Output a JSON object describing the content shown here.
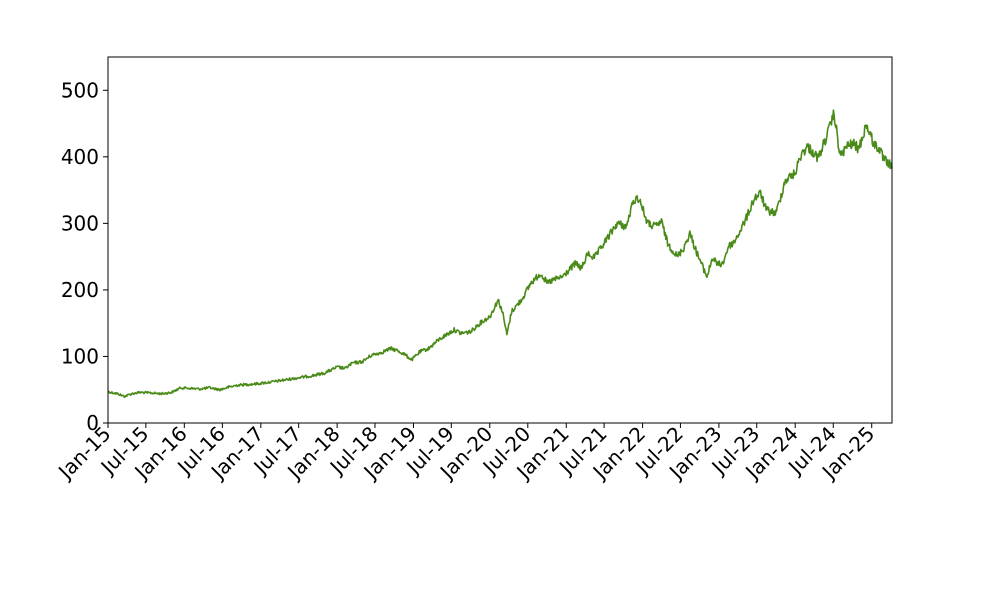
{
  "chart_data": {
    "type": "line",
    "title": "",
    "xlabel": "",
    "ylabel": "",
    "xlim": [
      "2015-01-01",
      "2025-04-08"
    ],
    "ylim": [
      0,
      550
    ],
    "grid": false,
    "x_ticks": [
      {
        "date": "2015-01-01",
        "label": "Jan-15"
      },
      {
        "date": "2015-07-01",
        "label": "Jul-15"
      },
      {
        "date": "2016-01-01",
        "label": "Jan-16"
      },
      {
        "date": "2016-07-01",
        "label": "Jul-16"
      },
      {
        "date": "2017-01-01",
        "label": "Jan-17"
      },
      {
        "date": "2017-07-01",
        "label": "Jul-17"
      },
      {
        "date": "2018-01-01",
        "label": "Jan-18"
      },
      {
        "date": "2018-07-01",
        "label": "Jul-18"
      },
      {
        "date": "2019-01-01",
        "label": "Jan-19"
      },
      {
        "date": "2019-07-01",
        "label": "Jul-19"
      },
      {
        "date": "2020-01-01",
        "label": "Jan-20"
      },
      {
        "date": "2020-07-01",
        "label": "Jul-20"
      },
      {
        "date": "2021-01-01",
        "label": "Jan-21"
      },
      {
        "date": "2021-07-01",
        "label": "Jul-21"
      },
      {
        "date": "2022-01-01",
        "label": "Jan-22"
      },
      {
        "date": "2022-07-01",
        "label": "Jul-22"
      },
      {
        "date": "2023-01-01",
        "label": "Jan-23"
      },
      {
        "date": "2023-07-01",
        "label": "Jul-23"
      },
      {
        "date": "2024-01-01",
        "label": "Jan-24"
      },
      {
        "date": "2024-07-01",
        "label": "Jul-24"
      },
      {
        "date": "2025-01-01",
        "label": "Jan-25"
      }
    ],
    "y_ticks": [
      {
        "value": 0,
        "label": "0"
      },
      {
        "value": 100,
        "label": "100"
      },
      {
        "value": 200,
        "label": "200"
      },
      {
        "value": 300,
        "label": "300"
      },
      {
        "value": 400,
        "label": "400"
      },
      {
        "value": 500,
        "label": "500"
      }
    ],
    "series": [
      {
        "color": "#4a8a18",
        "points": [
          [
            "2015-01-02",
            47
          ],
          [
            "2015-02-15",
            44
          ],
          [
            "2015-03-20",
            40
          ],
          [
            "2015-04-25",
            44
          ],
          [
            "2015-06-01",
            46
          ],
          [
            "2015-08-01",
            45
          ],
          [
            "2015-09-15",
            44
          ],
          [
            "2015-11-01",
            46
          ],
          [
            "2015-12-15",
            53
          ],
          [
            "2016-02-01",
            52
          ],
          [
            "2016-03-15",
            51
          ],
          [
            "2016-05-01",
            53
          ],
          [
            "2016-06-20",
            50
          ],
          [
            "2016-08-01",
            54
          ],
          [
            "2016-09-15",
            57
          ],
          [
            "2016-11-01",
            58
          ],
          [
            "2016-12-15",
            59
          ],
          [
            "2017-03-01",
            62
          ],
          [
            "2017-05-01",
            65
          ],
          [
            "2017-07-01",
            68
          ],
          [
            "2017-09-01",
            71
          ],
          [
            "2017-11-01",
            75
          ],
          [
            "2018-01-01",
            84
          ],
          [
            "2018-02-08",
            82
          ],
          [
            "2018-03-15",
            90
          ],
          [
            "2018-05-01",
            92
          ],
          [
            "2018-06-15",
            102
          ],
          [
            "2018-08-01",
            106
          ],
          [
            "2018-09-15",
            112
          ],
          [
            "2018-10-15",
            109
          ],
          [
            "2018-11-15",
            104
          ],
          [
            "2018-12-24",
            95
          ],
          [
            "2019-02-01",
            107
          ],
          [
            "2019-03-15",
            112
          ],
          [
            "2019-05-01",
            125
          ],
          [
            "2019-06-10",
            133
          ],
          [
            "2019-07-15",
            140
          ],
          [
            "2019-08-15",
            135
          ],
          [
            "2019-10-01",
            137
          ],
          [
            "2019-11-15",
            150
          ],
          [
            "2020-01-02",
            160
          ],
          [
            "2020-02-10",
            185
          ],
          [
            "2020-03-01",
            168
          ],
          [
            "2020-03-23",
            133
          ],
          [
            "2020-04-15",
            168
          ],
          [
            "2020-06-01",
            185
          ],
          [
            "2020-07-15",
            210
          ],
          [
            "2020-09-01",
            225
          ],
          [
            "2020-10-01",
            210
          ],
          [
            "2020-11-01",
            215
          ],
          [
            "2020-12-15",
            220
          ],
          [
            "2021-01-15",
            230
          ],
          [
            "2021-02-15",
            240
          ],
          [
            "2021-03-15",
            232
          ],
          [
            "2021-04-15",
            255
          ],
          [
            "2021-05-15",
            248
          ],
          [
            "2021-07-01",
            270
          ],
          [
            "2021-09-01",
            300
          ],
          [
            "2021-10-15",
            295
          ],
          [
            "2021-11-20",
            335
          ],
          [
            "2021-12-15",
            338
          ],
          [
            "2022-01-25",
            300
          ],
          [
            "2022-03-01",
            295
          ],
          [
            "2022-04-01",
            303
          ],
          [
            "2022-05-01",
            270
          ],
          [
            "2022-06-16",
            250
          ],
          [
            "2022-07-15",
            262
          ],
          [
            "2022-08-15",
            285
          ],
          [
            "2022-09-15",
            258
          ],
          [
            "2022-10-15",
            235
          ],
          [
            "2022-11-05",
            220
          ],
          [
            "2022-12-01",
            248
          ],
          [
            "2022-12-28",
            238
          ],
          [
            "2023-01-20",
            240
          ],
          [
            "2023-02-15",
            265
          ],
          [
            "2023-03-15",
            272
          ],
          [
            "2023-04-15",
            290
          ],
          [
            "2023-05-15",
            310
          ],
          [
            "2023-06-20",
            338
          ],
          [
            "2023-07-20",
            345
          ],
          [
            "2023-08-15",
            320
          ],
          [
            "2023-10-01",
            315
          ],
          [
            "2023-11-15",
            365
          ],
          [
            "2023-12-31",
            375
          ],
          [
            "2024-01-31",
            405
          ],
          [
            "2024-03-01",
            415
          ],
          [
            "2024-04-20",
            398
          ],
          [
            "2024-05-15",
            418
          ],
          [
            "2024-06-10",
            440
          ],
          [
            "2024-07-05",
            465
          ],
          [
            "2024-07-25",
            420
          ],
          [
            "2024-08-05",
            400
          ],
          [
            "2024-09-01",
            415
          ],
          [
            "2024-10-01",
            420
          ],
          [
            "2024-11-01",
            412
          ],
          [
            "2024-12-05",
            448
          ],
          [
            "2024-12-20",
            438
          ],
          [
            "2025-01-10",
            420
          ],
          [
            "2025-02-05",
            412
          ],
          [
            "2025-03-01",
            395
          ],
          [
            "2025-03-25",
            390
          ],
          [
            "2025-04-08",
            382
          ]
        ]
      }
    ]
  }
}
